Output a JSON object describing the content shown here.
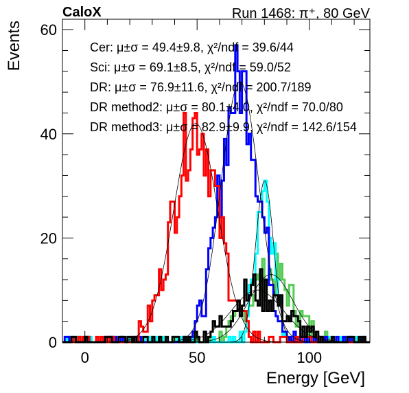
{
  "header": {
    "logo": "CaloX",
    "run_label": "Run 1468: π⁺, 80 GeV"
  },
  "chart_data": {
    "type": "line",
    "xlabel": "Energy [GeV]",
    "ylabel": "Events",
    "xlim": [
      -10,
      127
    ],
    "ylim": [
      0,
      62
    ],
    "x_ticks": [
      0,
      50,
      100
    ],
    "y_ticks": [
      0,
      20,
      40,
      60
    ],
    "grid": false,
    "legend_position": "top-left",
    "legend": [
      {
        "text": "Cer: μ±σ = 49.4±9.8, χ²/ndf = 39.6/44",
        "color": "#ff0000"
      },
      {
        "text": "Sci: μ±σ = 69.1±8.5, χ²/ndf = 59.0/52",
        "color": "#0000ff"
      },
      {
        "text": "DR: μ±σ = 76.9±11.6, χ²/ndf = 200.7/189",
        "color": "#000000"
      },
      {
        "text": "DR method2: μ±σ = 80.1±4.0, χ²/ndf = 70.0/80",
        "color": "#00ffff"
      },
      {
        "text": "DR method3: μ±σ = 82.9±9.9, χ²/ndf = 142.6/154",
        "color": "#55cc55"
      }
    ],
    "series": [
      {
        "name": "Cer",
        "color": "#ff0000",
        "mean": 49.4,
        "sigma": 9.8,
        "peak": 42
      },
      {
        "name": "Sci",
        "color": "#0000ff",
        "mean": 69.1,
        "sigma": 8.5,
        "peak": 50
      },
      {
        "name": "DR",
        "color": "#000000",
        "mean": 76.9,
        "sigma": 11.6,
        "peak": 10
      },
      {
        "name": "DR method2",
        "color": "#00ffff",
        "mean": 80.1,
        "sigma": 4.0,
        "peak": 31
      },
      {
        "name": "DR method3",
        "color": "#55cc55",
        "mean": 82.9,
        "sigma": 9.9,
        "peak": 13
      }
    ]
  }
}
